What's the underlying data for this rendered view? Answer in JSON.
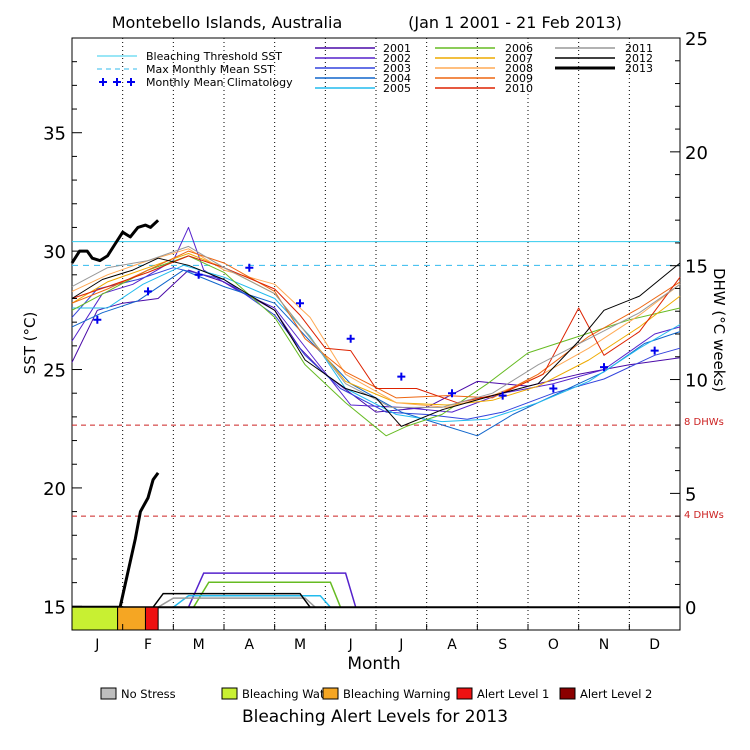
{
  "header": {
    "title": "Montebello Islands, Australia",
    "date_range": "(Jan 1 2001 - 21 Feb 2013)"
  },
  "axes": {
    "xlabel": "Month",
    "ylabel_left": "SST (°C)",
    "ylabel_right": "DHW (°C weeks)",
    "left_ticks": [
      "15",
      "20",
      "25",
      "30",
      "35"
    ],
    "right_ticks": [
      "0",
      "5",
      "10",
      "15",
      "20",
      "25"
    ],
    "month_ticks": [
      "J",
      "F",
      "M",
      "A",
      "M",
      "J",
      "J",
      "A",
      "S",
      "O",
      "N",
      "D"
    ]
  },
  "legend_lines": {
    "threshold": "Bleaching Threshold SST",
    "mmm": "Max Monthly Mean SST",
    "clim": "Monthly Mean Climatology"
  },
  "dhw_labels": {
    "eight": "8 DHWs",
    "four": "4 DHWs"
  },
  "alert_legend": {
    "title": "Bleaching Alert Levels for 2013",
    "items": [
      {
        "label": "No Stress",
        "color": "#bebebe"
      },
      {
        "label": "Bleaching Watch",
        "color": "#c8f032"
      },
      {
        "label": "Bleaching Warning",
        "color": "#f5a623"
      },
      {
        "label": "Alert Level 1",
        "color": "#ee1111"
      },
      {
        "label": "Alert Level 2",
        "color": "#8b0000"
      }
    ]
  },
  "colors": {
    "threshold": "#33ccee",
    "mmm": "#33bbee",
    "climatology": "#0000ee",
    "dhw_reference": "#cc2222"
  },
  "chart_data": {
    "type": "line",
    "x_unit": "month of year",
    "xlim": [
      0,
      12
    ],
    "sst_ylim": [
      14,
      39
    ],
    "dhw_ylim": [
      -1,
      25
    ],
    "bleaching_threshold_sst": 30.4,
    "max_monthly_mean_sst": 29.4,
    "dhw_reference_lines": [
      8,
      4
    ],
    "series": [
      {
        "name": "2001",
        "color": "#4a0aa8",
        "width": 1,
        "sst": [
          [
            0,
            25.3
          ],
          [
            0.5,
            27.5
          ],
          [
            1,
            27.8
          ],
          [
            1.7,
            28.0
          ],
          [
            2.3,
            29.2
          ],
          [
            3,
            28.7
          ],
          [
            4,
            27.5
          ],
          [
            4.5,
            25.9
          ],
          [
            5,
            24.8
          ],
          [
            6,
            23.2
          ],
          [
            7,
            23.4
          ],
          [
            8,
            24.5
          ],
          [
            9,
            24.3
          ],
          [
            10,
            24.8
          ],
          [
            11,
            25.2
          ],
          [
            12,
            25.5
          ]
        ]
      },
      {
        "name": "2002",
        "color": "#5522cc",
        "width": 1,
        "sst": [
          [
            0,
            26.2
          ],
          [
            0.6,
            28.2
          ],
          [
            1.2,
            28.6
          ],
          [
            2,
            29.6
          ],
          [
            2.3,
            31.0
          ],
          [
            2.6,
            29.2
          ],
          [
            3.3,
            28.3
          ],
          [
            4,
            27.6
          ],
          [
            4.8,
            25.4
          ],
          [
            5.5,
            23.5
          ],
          [
            6.5,
            23.4
          ],
          [
            7.5,
            23.2
          ],
          [
            8.5,
            24.0
          ],
          [
            9.5,
            24.4
          ],
          [
            10.5,
            25.0
          ],
          [
            11.5,
            26.5
          ],
          [
            12,
            26.8
          ]
        ]
      },
      {
        "name": "2003",
        "color": "#3344dd",
        "width": 1,
        "sst": [
          [
            0,
            27.2
          ],
          [
            0.5,
            28.4
          ],
          [
            1.3,
            28.8
          ],
          [
            2,
            29.3
          ],
          [
            3,
            28.8
          ],
          [
            4,
            27.3
          ],
          [
            4.6,
            25.6
          ],
          [
            5.3,
            24.2
          ],
          [
            6.2,
            23.2
          ],
          [
            7,
            23.1
          ],
          [
            7.8,
            22.9
          ],
          [
            8.5,
            23.2
          ],
          [
            9.5,
            24.0
          ],
          [
            10.5,
            24.6
          ],
          [
            11.5,
            25.6
          ],
          [
            12,
            25.9
          ]
        ]
      },
      {
        "name": "2004",
        "color": "#1166cc",
        "width": 1,
        "sst": [
          [
            0,
            26.8
          ],
          [
            0.6,
            27.4
          ],
          [
            1.3,
            27.9
          ],
          [
            2.2,
            29.2
          ],
          [
            3,
            28.5
          ],
          [
            4,
            27.8
          ],
          [
            4.7,
            26.2
          ],
          [
            5.5,
            24.4
          ],
          [
            6.5,
            23.2
          ],
          [
            7.4,
            22.6
          ],
          [
            8,
            22.2
          ],
          [
            8.7,
            23.1
          ],
          [
            9.5,
            23.9
          ],
          [
            10.5,
            24.9
          ],
          [
            11.3,
            26.1
          ],
          [
            12,
            26.6
          ]
        ]
      },
      {
        "name": "2005",
        "color": "#22bbee",
        "width": 1,
        "sst": [
          [
            0,
            27.6
          ],
          [
            0.7,
            27.6
          ],
          [
            1.4,
            28.6
          ],
          [
            2.2,
            29.4
          ],
          [
            3,
            28.9
          ],
          [
            4,
            28.0
          ],
          [
            4.7,
            26.4
          ],
          [
            5.4,
            24.2
          ],
          [
            6.4,
            23.1
          ],
          [
            7.3,
            22.8
          ],
          [
            8.2,
            22.9
          ],
          [
            9.2,
            23.6
          ],
          [
            10.2,
            24.5
          ],
          [
            11.2,
            25.9
          ],
          [
            12,
            26.9
          ]
        ]
      },
      {
        "name": "2006",
        "color": "#66bb22",
        "width": 1,
        "sst": [
          [
            0,
            27.5
          ],
          [
            0.7,
            28.3
          ],
          [
            1.5,
            29.2
          ],
          [
            2.3,
            29.8
          ],
          [
            3,
            29.1
          ],
          [
            4,
            27.2
          ],
          [
            4.6,
            25.2
          ],
          [
            5.4,
            23.6
          ],
          [
            6.2,
            22.2
          ],
          [
            6.6,
            22.6
          ],
          [
            7.3,
            23.1
          ],
          [
            8.2,
            24.4
          ],
          [
            9,
            25.7
          ],
          [
            10,
            26.4
          ],
          [
            11,
            27.1
          ],
          [
            12,
            27.6
          ]
        ]
      },
      {
        "name": "2007",
        "color": "#eeaa00",
        "width": 1,
        "sst": [
          [
            0,
            27.8
          ],
          [
            0.7,
            28.7
          ],
          [
            1.5,
            29.3
          ],
          [
            2.3,
            29.9
          ],
          [
            3,
            29.3
          ],
          [
            4,
            28.2
          ],
          [
            4.6,
            26.6
          ],
          [
            5.4,
            24.5
          ],
          [
            6.4,
            23.6
          ],
          [
            7.4,
            23.5
          ],
          [
            8.3,
            23.7
          ],
          [
            9.2,
            24.3
          ],
          [
            10.2,
            25.4
          ],
          [
            11.2,
            26.8
          ],
          [
            12,
            28.1
          ]
        ]
      },
      {
        "name": "2008",
        "color": "#ffaa55",
        "width": 1,
        "sst": [
          [
            0,
            28.3
          ],
          [
            0.7,
            29.0
          ],
          [
            1.5,
            29.6
          ],
          [
            2.3,
            30.1
          ],
          [
            3,
            29.2
          ],
          [
            4,
            28.6
          ],
          [
            4.7,
            27.2
          ],
          [
            5.4,
            24.8
          ],
          [
            6.4,
            23.6
          ],
          [
            7.4,
            23.4
          ],
          [
            8.3,
            23.9
          ],
          [
            9.2,
            24.7
          ],
          [
            10.2,
            25.9
          ],
          [
            11.2,
            27.3
          ],
          [
            12,
            28.6
          ]
        ]
      },
      {
        "name": "2009",
        "color": "#ee6611",
        "width": 1,
        "sst": [
          [
            0,
            27.8
          ],
          [
            0.7,
            28.4
          ],
          [
            1.5,
            29.2
          ],
          [
            2.3,
            30.0
          ],
          [
            3,
            29.5
          ],
          [
            4,
            28.3
          ],
          [
            4.6,
            26.3
          ],
          [
            5.4,
            24.9
          ],
          [
            6.4,
            23.8
          ],
          [
            7.4,
            23.9
          ],
          [
            8.3,
            23.8
          ],
          [
            9.2,
            24.8
          ],
          [
            10.2,
            26.4
          ],
          [
            11.2,
            27.6
          ],
          [
            12,
            28.7
          ]
        ]
      },
      {
        "name": "2010",
        "color": "#dd2200",
        "width": 1,
        "sst": [
          [
            0,
            28.0
          ],
          [
            0.7,
            28.5
          ],
          [
            1.5,
            29.1
          ],
          [
            2.3,
            29.8
          ],
          [
            3,
            29.3
          ],
          [
            4,
            28.4
          ],
          [
            4.5,
            27.3
          ],
          [
            5,
            25.9
          ],
          [
            5.5,
            25.8
          ],
          [
            6,
            24.2
          ],
          [
            6.8,
            24.2
          ],
          [
            7.6,
            23.6
          ],
          [
            8.5,
            24.0
          ],
          [
            9.3,
            24.8
          ],
          [
            10,
            27.6
          ],
          [
            10.5,
            25.6
          ],
          [
            11.2,
            26.6
          ],
          [
            12,
            28.9
          ]
        ]
      },
      {
        "name": "2011",
        "color": "#999999",
        "width": 1,
        "sst": [
          [
            0,
            28.5
          ],
          [
            0.7,
            29.3
          ],
          [
            1.5,
            29.6
          ],
          [
            2.3,
            30.2
          ],
          [
            3,
            29.3
          ],
          [
            4,
            28.2
          ],
          [
            4.6,
            26.6
          ],
          [
            5.4,
            24.4
          ],
          [
            6.3,
            23.4
          ],
          [
            7.3,
            23.4
          ],
          [
            8.3,
            24.0
          ],
          [
            9.2,
            25.2
          ],
          [
            10.2,
            26.3
          ],
          [
            11.2,
            27.4
          ],
          [
            12,
            28.6
          ]
        ]
      },
      {
        "name": "2012",
        "color": "#000000",
        "width": 1,
        "sst": [
          [
            0,
            28.0
          ],
          [
            0.6,
            28.8
          ],
          [
            1.2,
            29.2
          ],
          [
            1.7,
            29.7
          ],
          [
            2.3,
            29.4
          ],
          [
            3,
            28.8
          ],
          [
            4,
            27.5
          ],
          [
            4.6,
            25.4
          ],
          [
            5.4,
            24.2
          ],
          [
            6,
            23.8
          ],
          [
            6.5,
            22.6
          ],
          [
            7.3,
            23.3
          ],
          [
            8.3,
            23.9
          ],
          [
            9.2,
            24.4
          ],
          [
            10,
            26.2
          ],
          [
            10.5,
            27.5
          ],
          [
            11.2,
            28.1
          ],
          [
            12,
            29.5
          ]
        ]
      },
      {
        "name": "2013",
        "color": "#000000",
        "width": 3,
        "sst": [
          [
            0,
            29.5
          ],
          [
            0.15,
            30.0
          ],
          [
            0.3,
            30.0
          ],
          [
            0.4,
            29.7
          ],
          [
            0.55,
            29.6
          ],
          [
            0.7,
            29.8
          ],
          [
            0.85,
            30.3
          ],
          [
            1.0,
            30.8
          ],
          [
            1.15,
            30.6
          ],
          [
            1.3,
            31.0
          ],
          [
            1.45,
            31.1
          ],
          [
            1.55,
            31.0
          ],
          [
            1.7,
            31.3
          ]
        ]
      }
    ],
    "climatology": [
      [
        0.5,
        27.1
      ],
      [
        1.5,
        28.3
      ],
      [
        2.5,
        29.0
      ],
      [
        3.5,
        29.3
      ],
      [
        4.5,
        27.8
      ],
      [
        5.5,
        26.3
      ],
      [
        6.5,
        24.7
      ],
      [
        7.5,
        24.0
      ],
      [
        8.5,
        23.9
      ],
      [
        9.5,
        24.2
      ],
      [
        10.5,
        25.1
      ],
      [
        11.5,
        25.8
      ]
    ],
    "dhw": [
      {
        "name": "2002",
        "color": "#5522cc",
        "points": [
          [
            2.3,
            0
          ],
          [
            2.6,
            1.5
          ],
          [
            5.4,
            1.5
          ],
          [
            5.6,
            0
          ]
        ]
      },
      {
        "name": "2006",
        "color": "#66bb22",
        "points": [
          [
            2.4,
            0
          ],
          [
            2.7,
            1.1
          ],
          [
            5.1,
            1.1
          ],
          [
            5.3,
            0
          ]
        ]
      },
      {
        "name": "2005",
        "color": "#22bbee",
        "points": [
          [
            2.0,
            0
          ],
          [
            2.3,
            0.5
          ],
          [
            4.9,
            0.5
          ],
          [
            5.1,
            0
          ]
        ]
      },
      {
        "name": "2011",
        "color": "#999999",
        "points": [
          [
            1.7,
            0
          ],
          [
            2.0,
            0.4
          ],
          [
            4.6,
            0.4
          ],
          [
            4.8,
            0
          ]
        ]
      },
      {
        "name": "2012",
        "color": "#000000",
        "points": [
          [
            1.6,
            0
          ],
          [
            1.8,
            0.6
          ],
          [
            4.5,
            0.6
          ],
          [
            4.7,
            0
          ]
        ]
      },
      {
        "name": "2013",
        "color": "#000000",
        "width": 3,
        "points": [
          [
            0,
            0
          ],
          [
            0.95,
            0
          ],
          [
            1.1,
            1.5
          ],
          [
            1.25,
            3
          ],
          [
            1.35,
            4.2
          ],
          [
            1.5,
            4.8
          ],
          [
            1.6,
            5.6
          ],
          [
            1.7,
            5.9
          ]
        ]
      }
    ],
    "alert_bar_2013": [
      {
        "from": 0,
        "to": 0.9,
        "level": "Bleaching Watch"
      },
      {
        "from": 0.9,
        "to": 1.45,
        "level": "Bleaching Warning"
      },
      {
        "from": 1.45,
        "to": 1.7,
        "level": "Alert Level 1"
      }
    ]
  }
}
